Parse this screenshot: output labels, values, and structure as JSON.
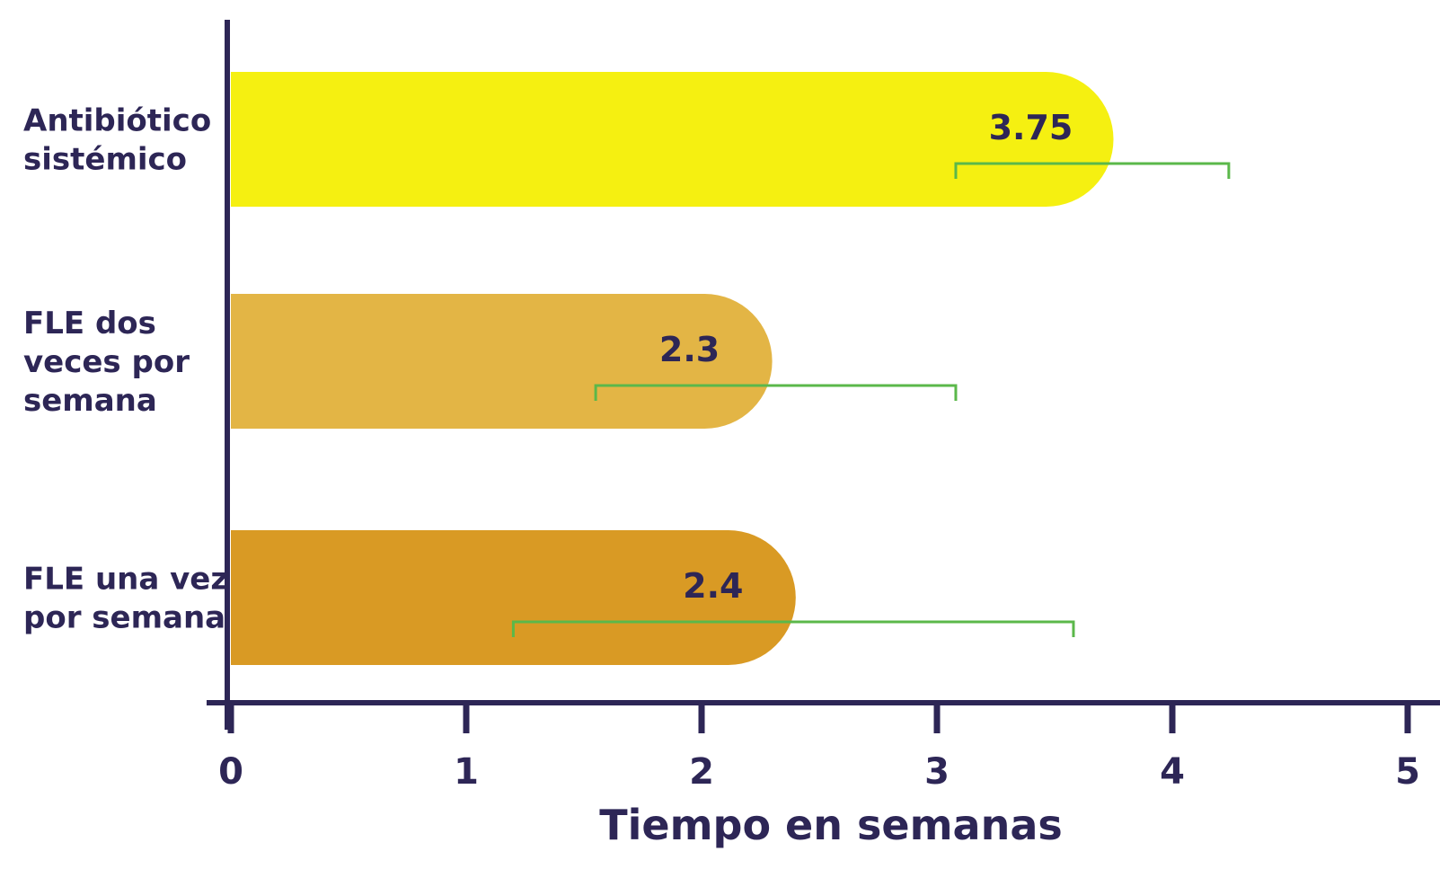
{
  "chart_data": {
    "type": "bar",
    "orientation": "horizontal",
    "categories": [
      [
        "Antibiótico",
        "sistémico"
      ],
      [
        "FLE dos",
        "veces por",
        "semana"
      ],
      [
        "FLE una vez",
        "por semana"
      ]
    ],
    "values": [
      3.75,
      2.3,
      2.4
    ],
    "data_labels": [
      "3.75",
      "2.3",
      "2.4"
    ],
    "error_bars": [
      {
        "low": 3.08,
        "high": 4.24
      },
      {
        "low": 1.55,
        "high": 3.08
      },
      {
        "low": 1.2,
        "high": 3.58
      }
    ],
    "xlabel": "Tiempo en semanas",
    "x_ticks": [
      "0",
      "1",
      "2",
      "3",
      "4",
      "5"
    ],
    "x_tick_values": [
      0,
      1,
      2,
      3,
      4,
      5
    ],
    "xlim": [
      0,
      5
    ],
    "grid": false,
    "legend": "none",
    "colors": {
      "bars": [
        "#f5f011",
        "#e3b545",
        "#d99a24"
      ],
      "error_bars": "#5bb84a",
      "axis": "#2d2656",
      "text": "#2d2656"
    }
  }
}
